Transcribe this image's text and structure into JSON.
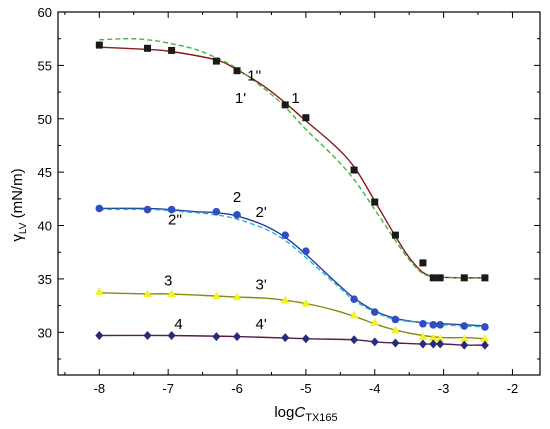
{
  "chart_data": {
    "type": "scatter",
    "title": "",
    "xlabel": {
      "main": "log",
      "italic": "C",
      "sub": "TX165"
    },
    "ylabel": {
      "main": "γ",
      "sub": "LV",
      "rest": " (mN/m)"
    },
    "xlim": [
      -8.6,
      -1.6
    ],
    "ylim": [
      26,
      60
    ],
    "xticks": [
      -8,
      -7,
      -6,
      -5,
      -4,
      -3,
      -2
    ],
    "xtick_labels": [
      "-8",
      "-7",
      "-6",
      "-5",
      "-4",
      "-3",
      "-2"
    ],
    "yticks": [
      30,
      35,
      40,
      45,
      50,
      55,
      60
    ],
    "ytick_labels": [
      "30",
      "35",
      "40",
      "45",
      "50",
      "55",
      "60"
    ],
    "grid": false,
    "series": [
      {
        "name": "1",
        "marker": "square",
        "color": "#1a1a1a",
        "x": [
          -8.0,
          -7.3,
          -6.95,
          -6.3,
          -6.0,
          -5.3,
          -5.0,
          -4.3,
          -4.0,
          -3.7,
          -3.3,
          -3.15,
          -3.05,
          -2.7,
          -2.4
        ],
        "y": [
          56.9,
          56.6,
          56.4,
          55.4,
          54.5,
          51.3,
          50.1,
          45.2,
          42.2,
          39.1,
          36.5,
          35.1,
          35.1,
          35.1,
          35.1
        ]
      },
      {
        "name": "2",
        "marker": "circle",
        "color": "#2f4ec2",
        "x": [
          -8.0,
          -7.3,
          -6.95,
          -6.3,
          -6.0,
          -5.3,
          -5.0,
          -4.3,
          -4.0,
          -3.7,
          -3.3,
          -3.15,
          -3.05,
          -2.7,
          -2.4
        ],
        "y": [
          41.6,
          41.5,
          41.5,
          41.3,
          41.0,
          39.1,
          37.6,
          33.1,
          31.9,
          31.2,
          30.8,
          30.7,
          30.7,
          30.6,
          30.5
        ]
      },
      {
        "name": "3",
        "marker": "triangle",
        "color": "#f2f21f",
        "x": [
          -8.0,
          -7.3,
          -6.95,
          -6.3,
          -6.0,
          -5.3,
          -5.0,
          -4.3,
          -4.0,
          -3.7,
          -3.3,
          -3.15,
          -3.05,
          -2.7,
          -2.4
        ],
        "y": [
          33.8,
          33.6,
          33.6,
          33.4,
          33.3,
          33.0,
          32.7,
          31.6,
          30.9,
          30.2,
          29.6,
          29.5,
          29.4,
          29.4,
          29.4
        ]
      },
      {
        "name": "4",
        "marker": "diamond",
        "color": "#2a2a7a",
        "x": [
          -8.0,
          -7.3,
          -6.95,
          -6.3,
          -6.0,
          -5.3,
          -5.0,
          -4.3,
          -4.0,
          -3.7,
          -3.3,
          -3.15,
          -3.05,
          -2.7,
          -2.4
        ],
        "y": [
          29.7,
          29.7,
          29.7,
          29.6,
          29.6,
          29.5,
          29.4,
          29.3,
          29.1,
          29.0,
          28.9,
          28.9,
          28.9,
          28.8,
          28.8
        ]
      }
    ],
    "curves": [
      {
        "name": "1'",
        "style": "solid",
        "color": "#8b1a1a",
        "x": [
          -8.0,
          -7.3,
          -6.95,
          -6.3,
          -6.0,
          -5.6,
          -5.3,
          -5.0,
          -4.6,
          -4.3,
          -4.0,
          -3.7,
          -3.5,
          -3.3,
          -3.1,
          -2.7,
          -2.4
        ],
        "y": [
          56.7,
          56.5,
          56.3,
          55.5,
          54.6,
          53.0,
          51.5,
          49.8,
          47.6,
          45.5,
          42.3,
          39.0,
          37.0,
          35.6,
          35.2,
          35.1,
          35.1
        ]
      },
      {
        "name": "1''",
        "style": "dashed",
        "color": "#3fb83f",
        "x": [
          -8.0,
          -7.6,
          -7.3,
          -7.0,
          -6.6,
          -6.3,
          -6.0,
          -5.6,
          -5.3,
          -5.0,
          -4.6,
          -4.3,
          -4.0,
          -3.7,
          -3.5,
          -3.3,
          -3.1,
          -2.7,
          -2.4
        ],
        "y": [
          57.4,
          57.5,
          57.4,
          57.1,
          56.5,
          55.7,
          54.7,
          52.8,
          51.1,
          49.0,
          46.5,
          44.3,
          41.5,
          38.6,
          36.8,
          35.5,
          35.2,
          35.1,
          35.1
        ]
      },
      {
        "name": "2'",
        "style": "solid",
        "color": "#1f3fa0",
        "x": [
          -8.0,
          -7.3,
          -7.0,
          -6.6,
          -6.3,
          -6.0,
          -5.6,
          -5.3,
          -5.0,
          -4.6,
          -4.3,
          -4.0,
          -3.7,
          -3.3,
          -3.0,
          -2.7,
          -2.4
        ],
        "y": [
          41.6,
          41.6,
          41.5,
          41.3,
          41.2,
          40.9,
          40.0,
          38.9,
          37.3,
          34.9,
          33.2,
          32.0,
          31.3,
          30.9,
          30.8,
          30.7,
          30.6
        ]
      },
      {
        "name": "2''",
        "style": "dashed",
        "color": "#29b6d6",
        "x": [
          -8.0,
          -7.3,
          -7.0,
          -6.6,
          -6.3,
          -6.0,
          -5.6,
          -5.3,
          -5.0,
          -4.6,
          -4.3,
          -4.0,
          -3.7,
          -3.3,
          -3.0,
          -2.7,
          -2.4
        ],
        "y": [
          41.5,
          41.5,
          41.4,
          41.2,
          41.0,
          40.6,
          39.7,
          38.6,
          37.0,
          34.7,
          33.0,
          31.9,
          31.2,
          30.9,
          30.7,
          30.6,
          30.5
        ]
      },
      {
        "name": "3'",
        "style": "solid",
        "color": "#8a8a10",
        "x": [
          -8.0,
          -7.3,
          -7.0,
          -6.3,
          -6.0,
          -5.6,
          -5.3,
          -5.0,
          -4.6,
          -4.3,
          -4.0,
          -3.7,
          -3.3,
          -3.0,
          -2.7,
          -2.4
        ],
        "y": [
          33.7,
          33.6,
          33.6,
          33.4,
          33.3,
          33.2,
          33.0,
          32.7,
          32.1,
          31.5,
          30.8,
          30.2,
          29.7,
          29.5,
          29.5,
          29.4
        ]
      },
      {
        "name": "4'",
        "style": "solid",
        "color": "#5a1a4a",
        "x": [
          -8.0,
          -7.0,
          -6.0,
          -5.0,
          -4.3,
          -4.0,
          -3.7,
          -3.3,
          -3.0,
          -2.7,
          -2.4
        ],
        "y": [
          29.7,
          29.7,
          29.6,
          29.4,
          29.3,
          29.1,
          29.0,
          28.9,
          28.9,
          28.8,
          28.8
        ]
      }
    ],
    "annotations": [
      {
        "text": "1''",
        "x": -5.75,
        "y": 53.6
      },
      {
        "text": "1'",
        "x": -5.95,
        "y": 51.5
      },
      {
        "text": "1",
        "x": -5.15,
        "y": 51.5
      },
      {
        "text": "2",
        "x": -6.0,
        "y": 42.2
      },
      {
        "text": "2'",
        "x": -5.65,
        "y": 40.8
      },
      {
        "text": "2''",
        "x": -6.9,
        "y": 40.1
      },
      {
        "text": "3",
        "x": -7.0,
        "y": 34.4
      },
      {
        "text": "3'",
        "x": -5.65,
        "y": 34.0
      },
      {
        "text": "4",
        "x": -6.85,
        "y": 30.3
      },
      {
        "text": "4'",
        "x": -5.65,
        "y": 30.3
      }
    ]
  }
}
